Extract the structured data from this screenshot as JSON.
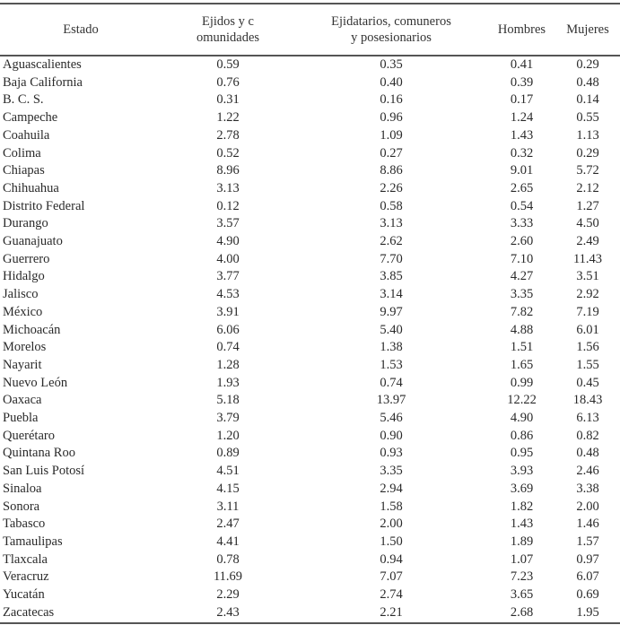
{
  "table": {
    "headers": [
      {
        "line1": "Estado",
        "line2": ""
      },
      {
        "line1": "Ejidos y c",
        "line2": "omunidades"
      },
      {
        "line1": "Ejidatarios, comuneros",
        "line2": "y posesionarios"
      },
      {
        "line1": "Hombres",
        "line2": ""
      },
      {
        "line1": "Mujeres",
        "line2": ""
      }
    ],
    "rows": [
      [
        "Aguascalientes",
        "0.59",
        "0.35",
        "0.41",
        "0.29"
      ],
      [
        "Baja California",
        "0.76",
        "0.40",
        "0.39",
        "0.48"
      ],
      [
        "B. C. S.",
        "0.31",
        "0.16",
        "0.17",
        "0.14"
      ],
      [
        "Campeche",
        "1.22",
        "0.96",
        "1.24",
        "0.55"
      ],
      [
        "Coahuila",
        "2.78",
        "1.09",
        "1.43",
        "1.13"
      ],
      [
        "Colima",
        "0.52",
        "0.27",
        "0.32",
        "0.29"
      ],
      [
        "Chiapas",
        "8.96",
        "8.86",
        "9.01",
        "5.72"
      ],
      [
        "Chihuahua",
        "3.13",
        "2.26",
        "2.65",
        "2.12"
      ],
      [
        "Distrito Federal",
        "0.12",
        "0.58",
        "0.54",
        "1.27"
      ],
      [
        "Durango",
        "3.57",
        "3.13",
        "3.33",
        "4.50"
      ],
      [
        "Guanajuato",
        "4.90",
        "2.62",
        "2.60",
        "2.49"
      ],
      [
        "Guerrero",
        "4.00",
        "7.70",
        "7.10",
        "11.43"
      ],
      [
        "Hidalgo",
        "3.77",
        "3.85",
        "4.27",
        "3.51"
      ],
      [
        "Jalisco",
        "4.53",
        "3.14",
        "3.35",
        "2.92"
      ],
      [
        "México",
        "3.91",
        "9.97",
        "7.82",
        "7.19"
      ],
      [
        "Michoacán",
        "6.06",
        "5.40",
        "4.88",
        "6.01"
      ],
      [
        "Morelos",
        "0.74",
        "1.38",
        "1.51",
        "1.56"
      ],
      [
        "Nayarit",
        "1.28",
        "1.53",
        "1.65",
        "1.55"
      ],
      [
        "Nuevo León",
        "1.93",
        "0.74",
        "0.99",
        "0.45"
      ],
      [
        "Oaxaca",
        "5.18",
        "13.97",
        "12.22",
        "18.43"
      ],
      [
        "Puebla",
        "3.79",
        "5.46",
        "4.90",
        "6.13"
      ],
      [
        "Querétaro",
        "1.20",
        "0.90",
        "0.86",
        "0.82"
      ],
      [
        "Quintana Roo",
        "0.89",
        "0.93",
        "0.95",
        "0.48"
      ],
      [
        "San Luis Potosí",
        "4.51",
        "3.35",
        "3.93",
        "2.46"
      ],
      [
        "Sinaloa",
        "4.15",
        "2.94",
        "3.69",
        "3.38"
      ],
      [
        "Sonora",
        "3.11",
        "1.58",
        "1.82",
        "2.00"
      ],
      [
        "Tabasco",
        "2.47",
        "2.00",
        "1.43",
        "1.46"
      ],
      [
        "Tamaulipas",
        "4.41",
        "1.50",
        "1.89",
        "1.57"
      ],
      [
        "Tlaxcala",
        "0.78",
        "0.94",
        "1.07",
        "0.97"
      ],
      [
        "Veracruz",
        "11.69",
        "7.07",
        "7.23",
        "6.07"
      ],
      [
        "Yucatán",
        "2.29",
        "2.74",
        "3.65",
        "0.69"
      ],
      [
        "Zacatecas",
        "2.43",
        "2.21",
        "2.68",
        "1.95"
      ]
    ]
  }
}
